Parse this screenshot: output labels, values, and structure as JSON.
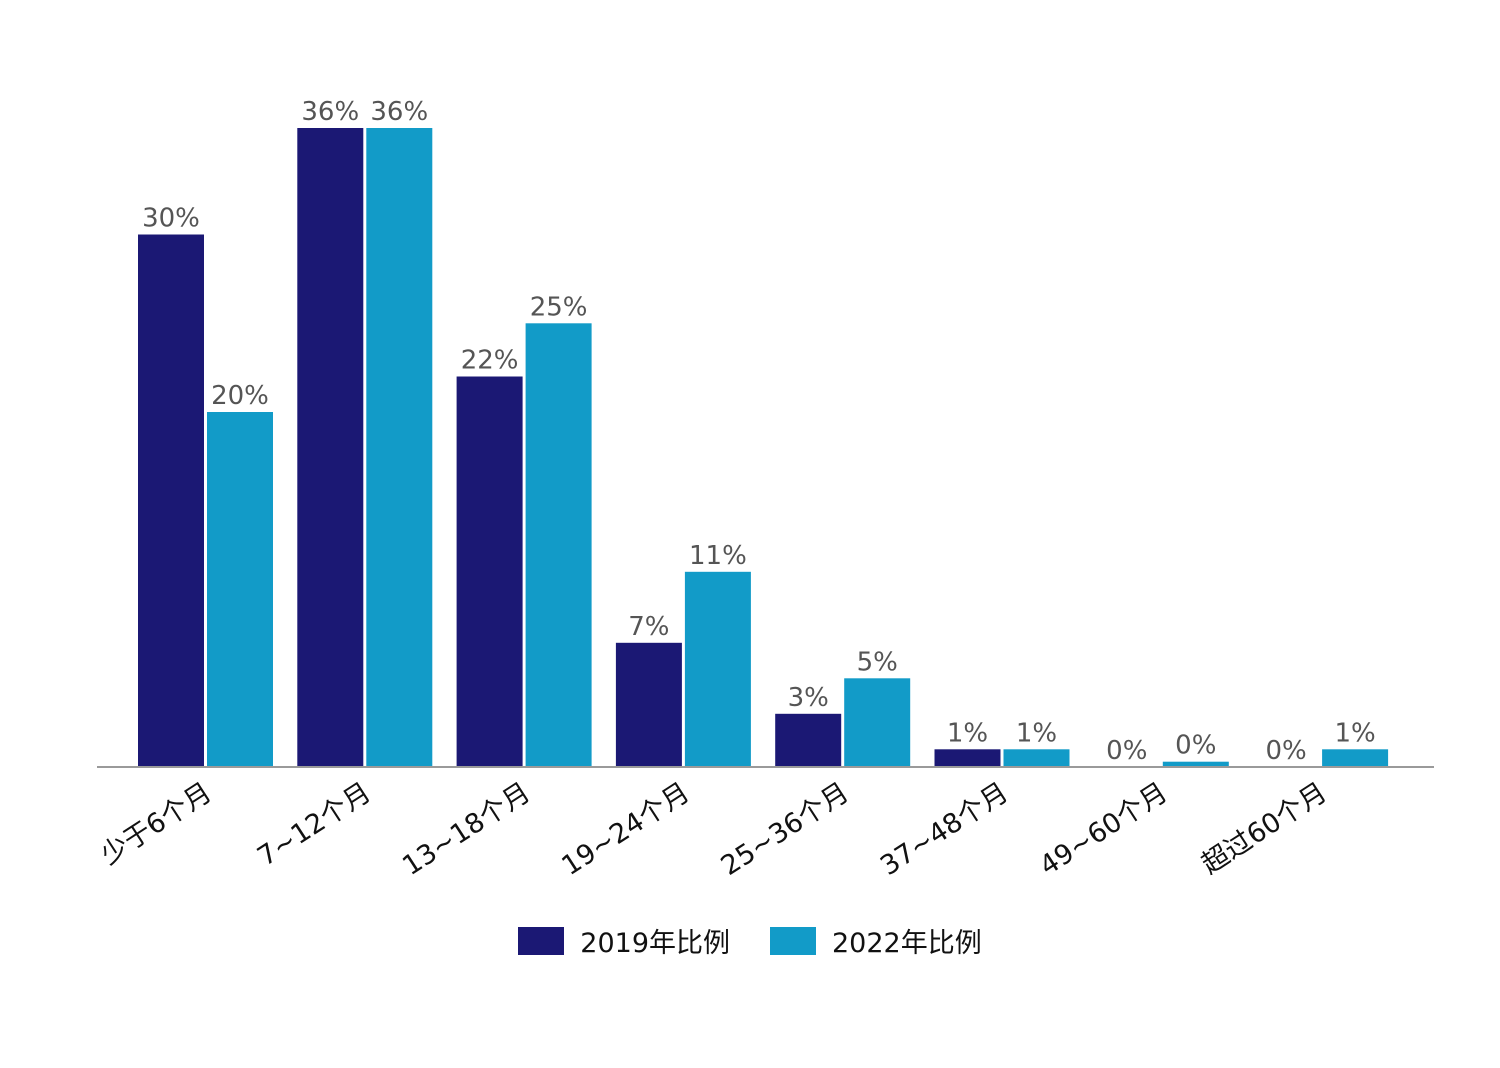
{
  "chart_data": {
    "type": "bar",
    "categories": [
      "少于6个月",
      "7~12个月",
      "13~18个月",
      "19~24个月",
      "25~36个月",
      "37~48个月",
      "49~60个月",
      "超过60个月"
    ],
    "series": [
      {
        "name": "2019年比例",
        "color": "#1b1874",
        "values": [
          30,
          36,
          22,
          7,
          3,
          1,
          0,
          0
        ],
        "labels": [
          "30%",
          "36%",
          "22%",
          "7%",
          "3%",
          "1%",
          "0%",
          "0%"
        ]
      },
      {
        "name": "2022年比例",
        "color": "#129bc8",
        "values": [
          20,
          36,
          25,
          11,
          5,
          1,
          0.3,
          1
        ],
        "labels": [
          "20%",
          "36%",
          "25%",
          "11%",
          "5%",
          "1%",
          "0%",
          "1%"
        ]
      }
    ],
    "ylim": [
      0,
      36
    ],
    "grid": false,
    "legend_position": "bottom-center"
  }
}
